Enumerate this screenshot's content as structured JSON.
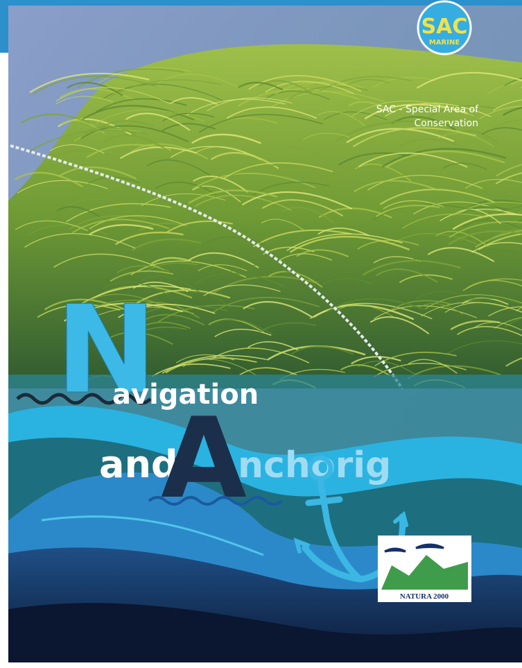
{
  "badge": {
    "title": "SAC",
    "subtitle": "MARINE"
  },
  "subtitle_lines": [
    "SAC - Special Area of",
    "Conservation"
  ],
  "title": {
    "line1": {
      "initial": "N",
      "rest": "avigation"
    },
    "line2": {
      "lead": "and",
      "initial": "A",
      "rest": "nchorig"
    }
  },
  "logo": {
    "label": "NATURA 2000"
  }
}
